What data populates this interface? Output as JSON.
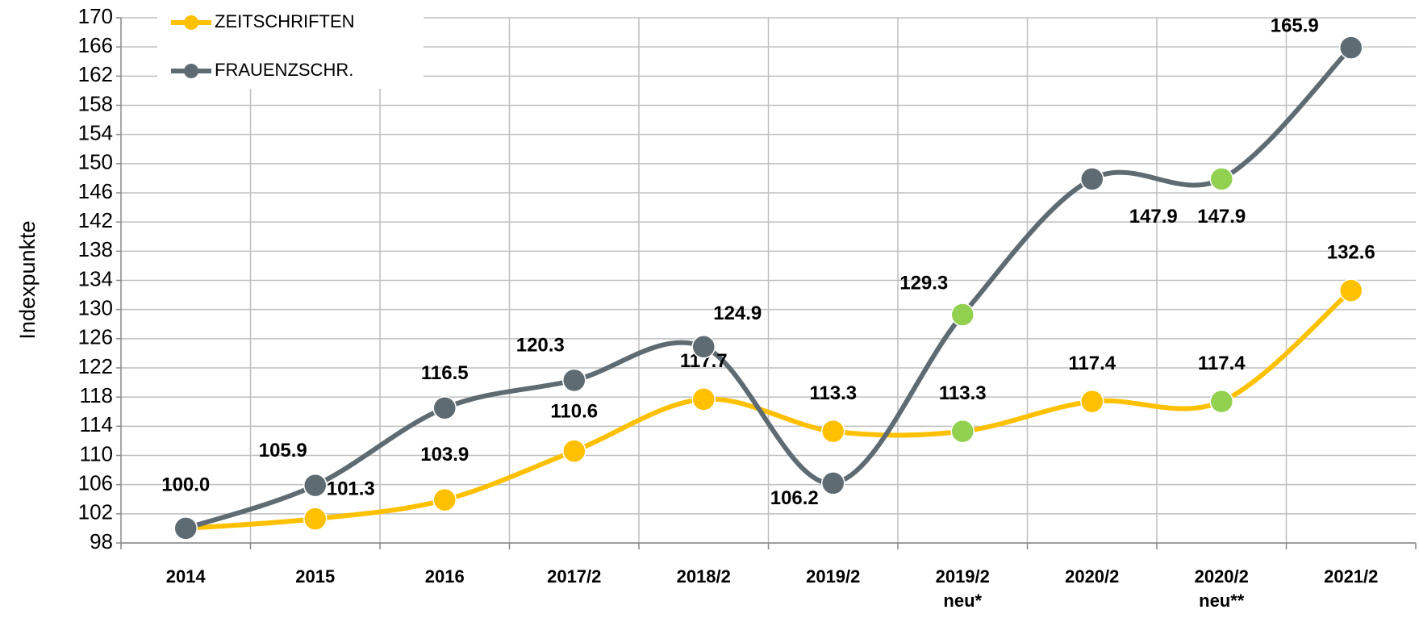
{
  "chart_data": {
    "type": "line",
    "y_label": "Indexpunkte",
    "categories": [
      "2014",
      "2015",
      "2016",
      "2017/2",
      "2018/2",
      "2019/2",
      "2019/2 neu*",
      "2020/2",
      "2020/2 neu**",
      "2021/2"
    ],
    "series": [
      {
        "name": "ZEITSCHRIFTEN",
        "color": "#ffc000",
        "marker_colors": [
          "#ffc000",
          "#ffc000",
          "#ffc000",
          "#ffc000",
          "#ffc000",
          "#ffc000",
          "#92d050",
          "#ffc000",
          "#92d050",
          "#ffc000"
        ],
        "values": [
          100.0,
          101.3,
          103.9,
          110.6,
          117.7,
          113.3,
          113.3,
          117.4,
          117.4,
          132.6
        ],
        "value_labels": [
          null,
          "101.3",
          "103.9",
          "110.6",
          "117.7",
          "113.3",
          "113.3",
          "117.4",
          "117.4",
          "132.6"
        ]
      },
      {
        "name": "FRAUENZSCHR.",
        "color": "#5f6b73",
        "marker_colors": [
          "#5f6b73",
          "#5f6b73",
          "#5f6b73",
          "#5f6b73",
          "#5f6b73",
          "#5f6b73",
          "#92d050",
          "#5f6b73",
          "#92d050",
          "#5f6b73"
        ],
        "values": [
          100.0,
          105.9,
          116.5,
          120.3,
          124.9,
          106.2,
          129.3,
          147.9,
          147.9,
          165.9
        ],
        "value_labels": [
          "100.0",
          "105.9",
          "116.5",
          "120.3",
          "124.9",
          "106.2",
          "129.3",
          "147.9",
          "147.9",
          "165.9"
        ]
      }
    ],
    "ylim": [
      98,
      170
    ],
    "yticks": [
      98,
      102,
      106,
      110,
      114,
      118,
      122,
      126,
      130,
      134,
      138,
      142,
      146,
      150,
      154,
      158,
      162,
      166,
      170
    ],
    "grid": true,
    "legend": "top-left"
  }
}
